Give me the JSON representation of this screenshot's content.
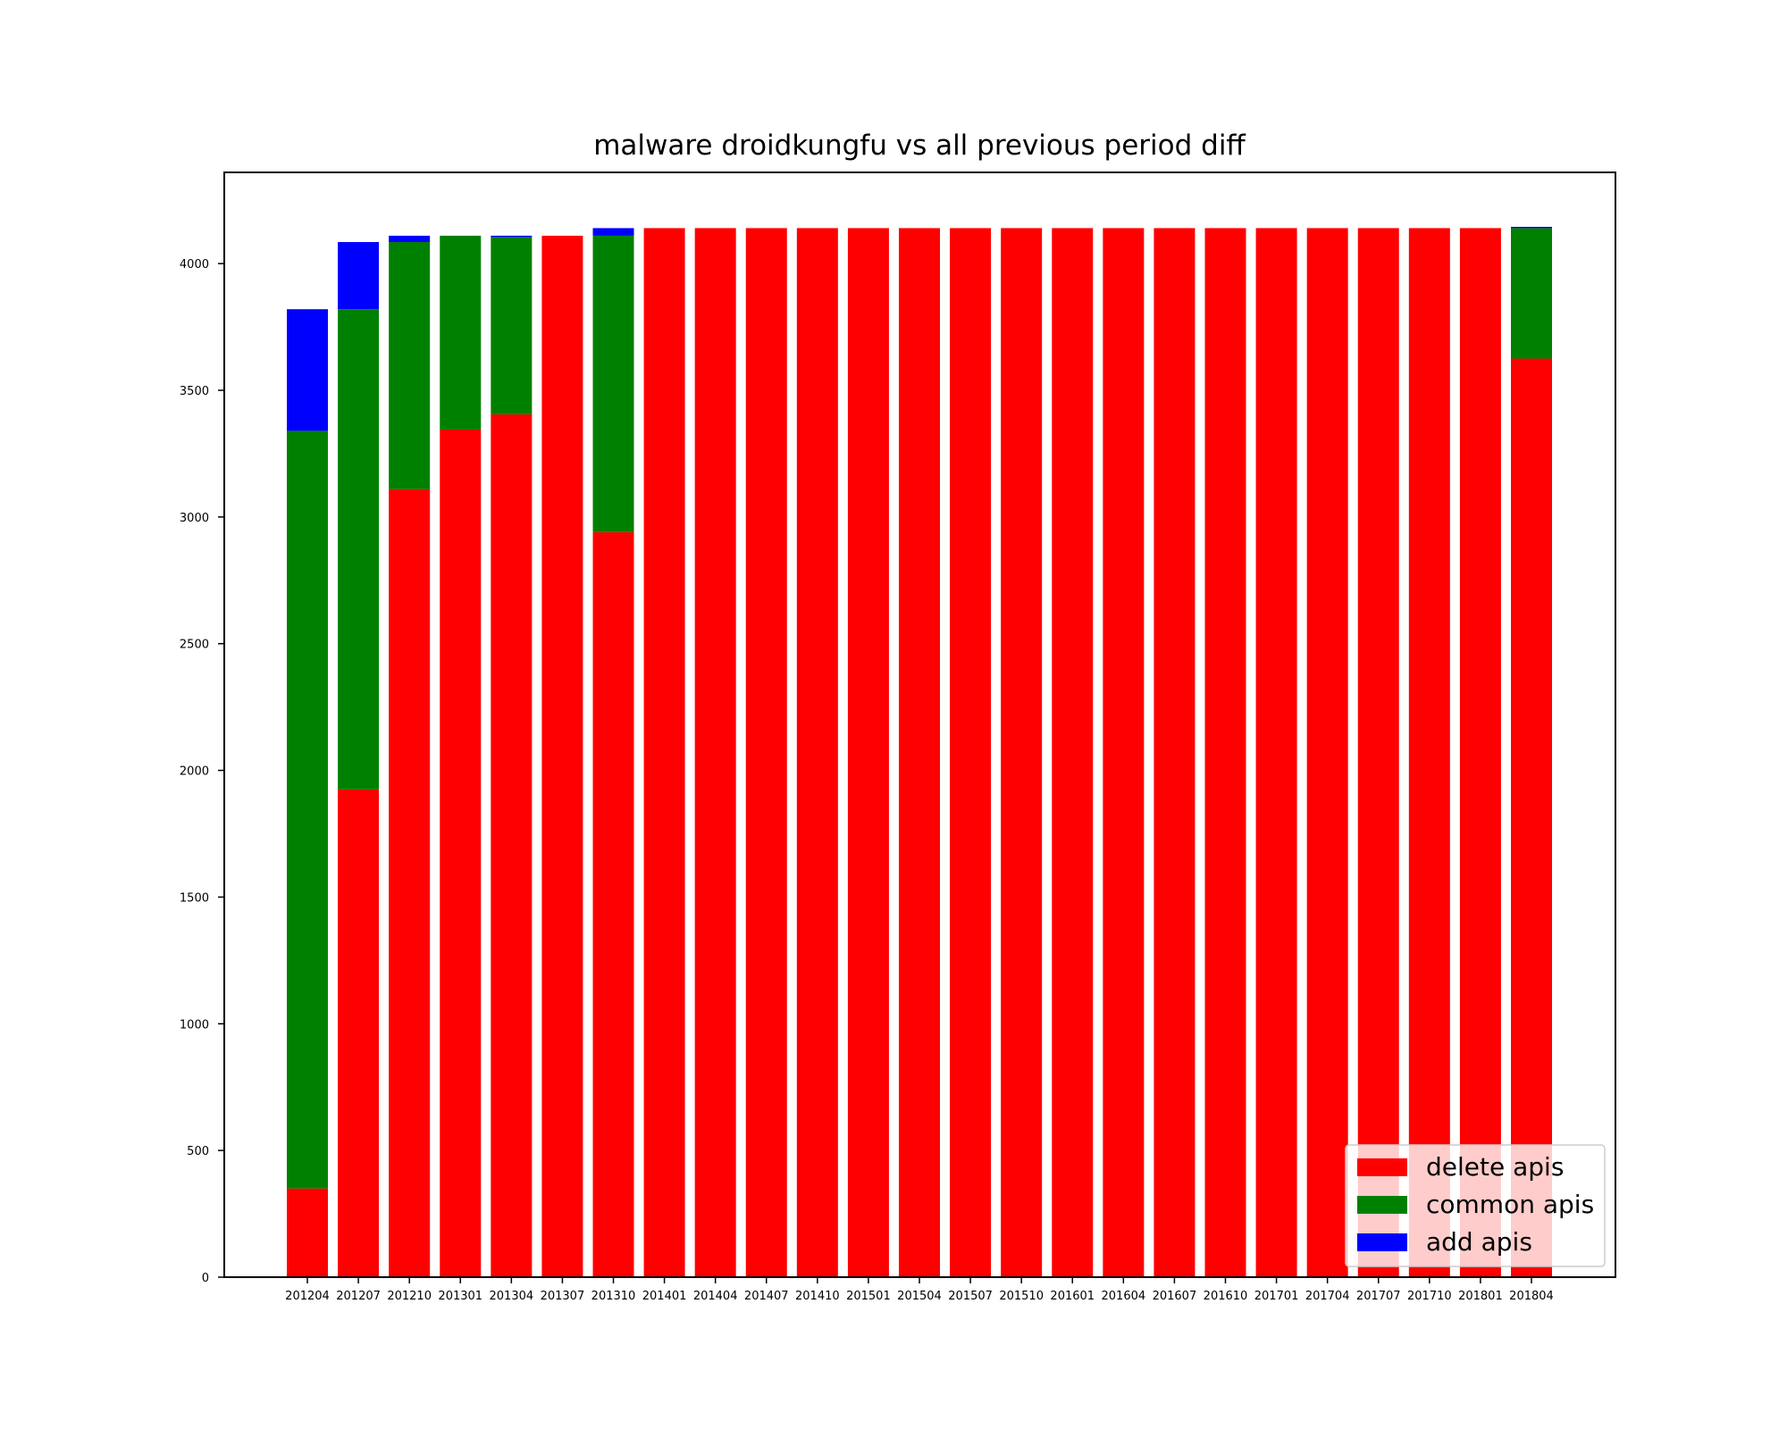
{
  "chart_data": {
    "type": "bar",
    "stacked": true,
    "title": "malware droidkungfu vs all previous period diff",
    "xlabel": "",
    "ylabel": "",
    "ylim": [
      0,
      4360
    ],
    "yticks": [
      0,
      500,
      1000,
      1500,
      2000,
      2500,
      3000,
      3500,
      4000
    ],
    "grid": false,
    "legend_position": "lower-right",
    "categories": [
      "201204",
      "201207",
      "201210",
      "201301",
      "201304",
      "201307",
      "201310",
      "201401",
      "201404",
      "201407",
      "201410",
      "201501",
      "201504",
      "201507",
      "201510",
      "201601",
      "201604",
      "201607",
      "201610",
      "201701",
      "201704",
      "201707",
      "201710",
      "201801",
      "201804"
    ],
    "series": [
      {
        "name": "delete apis",
        "color": "#ff0000",
        "values": [
          350,
          1925,
          3110,
          3345,
          3405,
          4110,
          2940,
          4140,
          4140,
          4140,
          4140,
          4140,
          4140,
          4140,
          4140,
          4140,
          4140,
          4140,
          4140,
          4140,
          4140,
          4140,
          4140,
          4140,
          3625
        ]
      },
      {
        "name": "common apis",
        "color": "#008000",
        "values": [
          2990,
          1895,
          975,
          765,
          700,
          0,
          1170,
          0,
          0,
          0,
          0,
          0,
          0,
          0,
          0,
          0,
          0,
          0,
          0,
          0,
          0,
          0,
          0,
          0,
          515
        ]
      },
      {
        "name": "add apis",
        "color": "#0000ff",
        "values": [
          480,
          265,
          25,
          0,
          5,
          0,
          30,
          0,
          0,
          0,
          0,
          0,
          0,
          0,
          0,
          0,
          0,
          0,
          0,
          0,
          0,
          0,
          0,
          0,
          5
        ]
      }
    ]
  }
}
